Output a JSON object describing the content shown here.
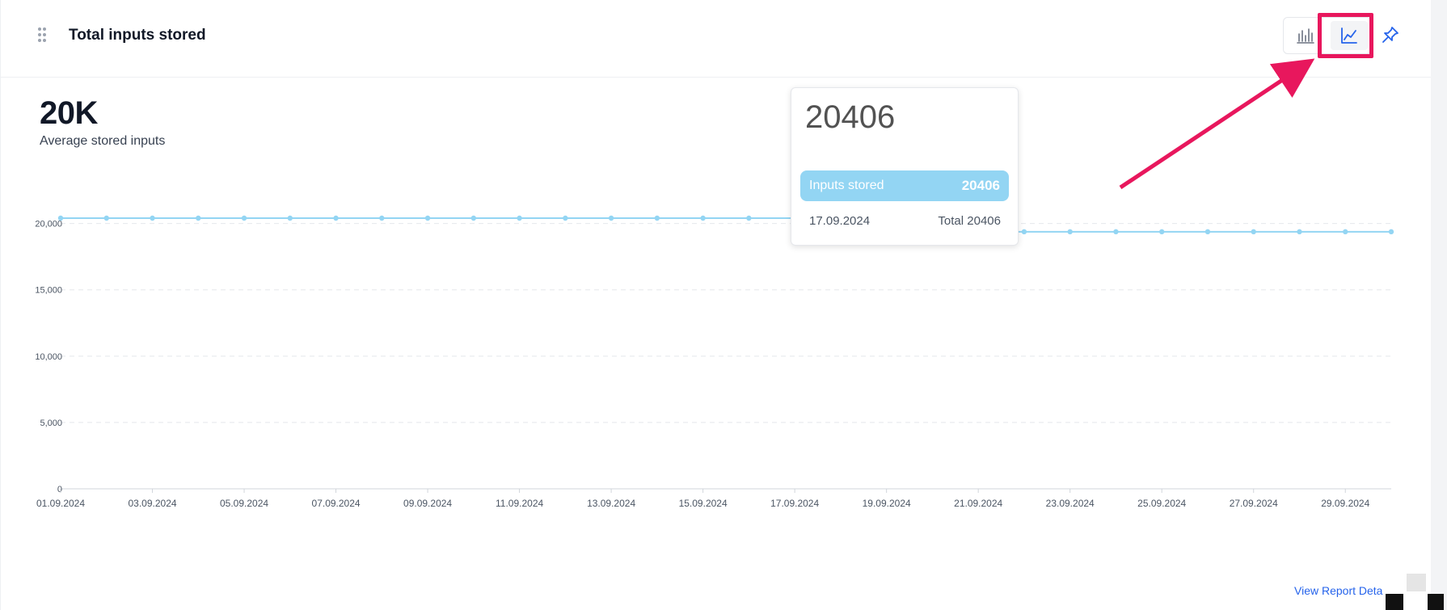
{
  "header": {
    "title": "Total inputs stored",
    "chart_toggle": {
      "bar_icon": "bar-chart-icon",
      "line_icon": "line-chart-icon",
      "active": "line"
    },
    "pin_icon": "pin-icon"
  },
  "kpi": {
    "value": "20K",
    "label": "Average stored inputs"
  },
  "tooltip": {
    "headline": "20406",
    "series_label": "Inputs stored",
    "series_value": "20406",
    "date": "17.09.2024",
    "total": "Total 20406"
  },
  "footer": {
    "view_report": "View Report Deta"
  },
  "colors": {
    "line": "#93d5f3",
    "accent": "#2563eb",
    "highlight": "#e8175d"
  },
  "chart_data": {
    "type": "line",
    "x": [
      "01.09.2024",
      "02.09.2024",
      "03.09.2024",
      "04.09.2024",
      "05.09.2024",
      "06.09.2024",
      "07.09.2024",
      "08.09.2024",
      "09.09.2024",
      "10.09.2024",
      "11.09.2024",
      "12.09.2024",
      "13.09.2024",
      "14.09.2024",
      "15.09.2024",
      "16.09.2024",
      "17.09.2024",
      "18.09.2024",
      "19.09.2024",
      "20.09.2024",
      "21.09.2024",
      "22.09.2024",
      "23.09.2024",
      "24.09.2024",
      "25.09.2024",
      "26.09.2024",
      "27.09.2024",
      "28.09.2024",
      "29.09.2024",
      "30.09.2024"
    ],
    "x_tick_labels": [
      "01.09.2024",
      "03.09.2024",
      "05.09.2024",
      "07.09.2024",
      "09.09.2024",
      "11.09.2024",
      "13.09.2024",
      "15.09.2024",
      "17.09.2024",
      "19.09.2024",
      "21.09.2024",
      "23.09.2024",
      "25.09.2024",
      "27.09.2024",
      "29.09.2024"
    ],
    "series": [
      {
        "name": "Inputs stored",
        "values": [
          20406,
          20406,
          20406,
          20406,
          20406,
          20406,
          20406,
          20406,
          20406,
          20406,
          20406,
          20406,
          20406,
          20406,
          20406,
          20406,
          20406,
          20406,
          20406,
          19380,
          19380,
          19380,
          19380,
          19380,
          19380,
          19380,
          19380,
          19380,
          19380,
          19380
        ]
      }
    ],
    "y_ticks": [
      0,
      5000,
      10000,
      15000,
      20000
    ],
    "y_tick_labels": [
      "0",
      "5,000",
      "10,000",
      "15,000",
      "20,000"
    ],
    "ylim": [
      0,
      20406
    ],
    "grid": "horizontal dashed"
  }
}
